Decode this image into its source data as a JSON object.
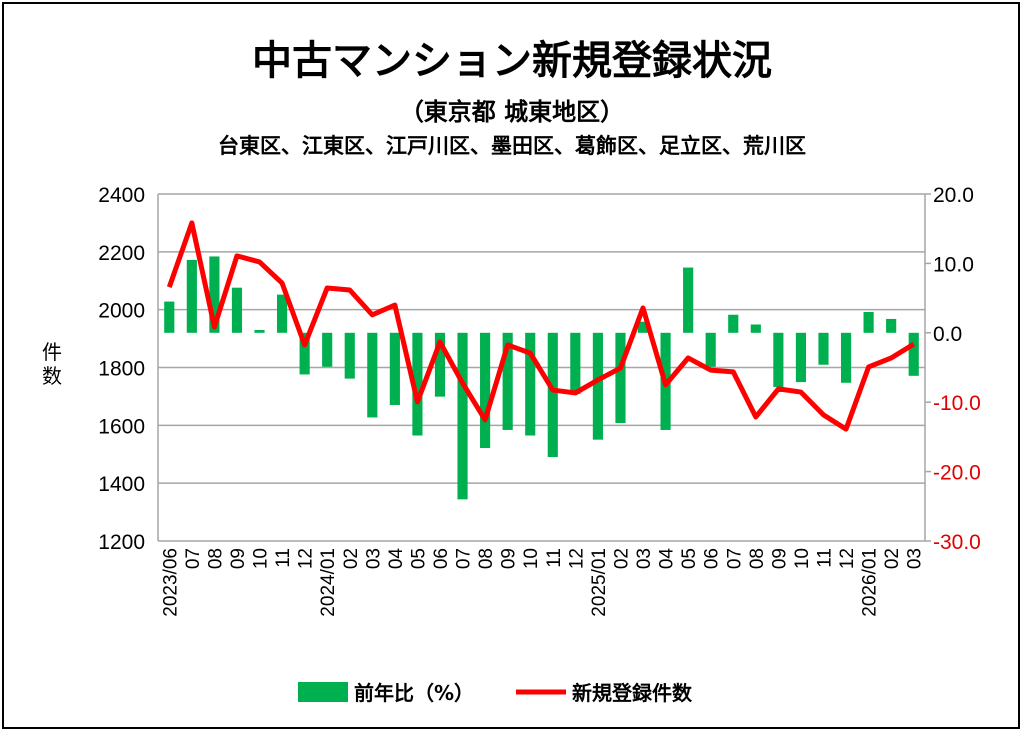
{
  "chart_data": {
    "type": "bar+line",
    "title": "中古マンション新規登録状況",
    "subtitle": "（東京都 城東地区）",
    "wards": "台東区、江東区、江戸川区、墨田区、葛飾区、足立区、荒川区",
    "ylabel": "件数",
    "ylim_left": [
      1200,
      2400
    ],
    "yticks_left": [
      "1200",
      "1400",
      "1600",
      "1800",
      "2000",
      "2200",
      "2400"
    ],
    "ylim_right": [
      -30,
      20
    ],
    "yticks_right": [
      "-30.0",
      "-20.0",
      "-10.0",
      "0.0",
      "10.0",
      "20.0"
    ],
    "categories": [
      "2023/06",
      "07",
      "08",
      "09",
      "10",
      "11",
      "12",
      "2024/01",
      "02",
      "03",
      "04",
      "05",
      "06",
      "07",
      "08",
      "09",
      "10",
      "11",
      "12",
      "2025/01",
      "02",
      "03",
      "04",
      "05",
      "06",
      "07",
      "08",
      "09",
      "10",
      "11",
      "12",
      "2026/01",
      "02",
      "03"
    ],
    "series": [
      {
        "name": "前年比（%）",
        "type": "bar",
        "axis": "right",
        "color": "#00b050",
        "values": [
          4.5,
          10.5,
          11.0,
          6.5,
          0.4,
          5.5,
          -6.0,
          -4.9,
          -6.6,
          -12.2,
          -10.4,
          -14.8,
          -9.2,
          -24.0,
          -16.6,
          -14.0,
          -14.8,
          -17.9,
          -8.8,
          -15.4,
          -13.0,
          1.6,
          -14.0,
          9.4,
          -4.9,
          2.6,
          1.2,
          -7.8,
          -7.1,
          -4.6,
          -7.2,
          3.0,
          2.0,
          -6.2
        ]
      },
      {
        "name": "新規登録件数",
        "type": "line",
        "axis": "left",
        "color": "#ff0000",
        "values": [
          2078,
          2300,
          1940,
          2186,
          2165,
          2092,
          1878,
          2075,
          2068,
          1982,
          2016,
          1681,
          1888,
          1746,
          1619,
          1878,
          1850,
          1722,
          1712,
          1757,
          1798,
          2006,
          1740,
          1833,
          1791,
          1785,
          1629,
          1726,
          1715,
          1636,
          1587,
          1802,
          1833,
          1881
        ]
      }
    ],
    "grid": true,
    "legend": "bottom"
  }
}
